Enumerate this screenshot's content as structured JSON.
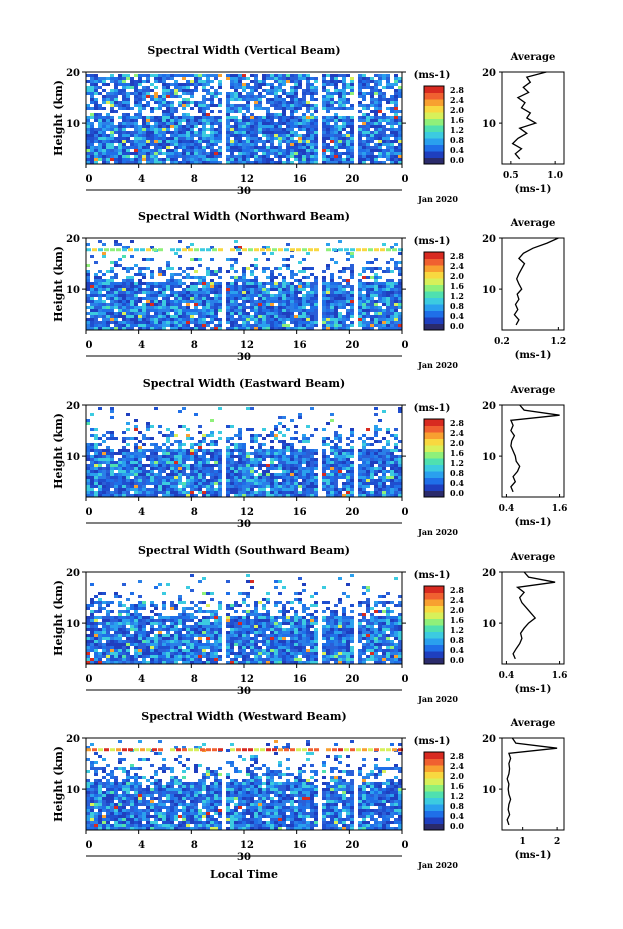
{
  "colors": {
    "colorbar": [
      "#2b2b6b",
      "#1f3fbf",
      "#1f6fe8",
      "#2aa0ee",
      "#3ccbe0",
      "#4fe0b0",
      "#8ff07a",
      "#d8f05a",
      "#f8d840",
      "#f8a030",
      "#f06030",
      "#d82a20"
    ]
  },
  "chart_data": [
    {
      "type": "heatmap",
      "title": "Spectral Width (Vertical Beam)",
      "ylabel": "Height (km)",
      "x_ticks": [
        "0",
        "4",
        "8",
        "12",
        "16",
        "20",
        "0"
      ],
      "date_label": "30",
      "month_label": "Jan 2020",
      "y_ticks": [
        "20",
        "10"
      ],
      "ylim": [
        2,
        20
      ],
      "xlim": [
        0,
        24
      ],
      "gaps_hours": [
        [
          3.4,
          3.6
        ],
        [
          5.8,
          6.0
        ],
        [
          10.2,
          10.6
        ],
        [
          17.6,
          17.8
        ],
        [
          20.2,
          20.4
        ]
      ],
      "colorbar": {
        "unit": "(ms-1)",
        "ticks": [
          "2.8",
          "2.4",
          "2.0",
          "1.6",
          "1.2",
          "0.8",
          "0.4",
          "0.0"
        ]
      },
      "average": {
        "title": "Average",
        "xlabel": "(ms-1)",
        "x_ticks": [
          "0.5",
          "1.0"
        ],
        "xlim": [
          0.4,
          1.1
        ],
        "y_ticks": [
          "20",
          "10"
        ],
        "profile": [
          [
            3,
            0.6
          ],
          [
            4,
            0.55
          ],
          [
            5,
            0.62
          ],
          [
            6,
            0.52
          ],
          [
            7,
            0.58
          ],
          [
            8,
            0.68
          ],
          [
            9,
            0.6
          ],
          [
            10,
            0.78
          ],
          [
            11,
            0.68
          ],
          [
            12,
            0.72
          ],
          [
            13,
            0.62
          ],
          [
            14,
            0.66
          ],
          [
            15,
            0.58
          ],
          [
            16,
            0.7
          ],
          [
            17,
            0.64
          ],
          [
            18,
            0.72
          ],
          [
            19,
            0.68
          ],
          [
            20,
            0.9
          ]
        ]
      }
    },
    {
      "type": "heatmap",
      "title": "Spectral Width (Northward Beam)",
      "ylabel": "Height (km)",
      "x_ticks": [
        "0",
        "4",
        "8",
        "12",
        "16",
        "20",
        "0"
      ],
      "date_label": "30",
      "month_label": "Jan 2020",
      "y_ticks": [
        "20",
        "10"
      ],
      "ylim": [
        2,
        20
      ],
      "xlim": [
        0,
        24
      ],
      "gaps_hours": [
        [
          3.4,
          3.6
        ],
        [
          5.8,
          6.0
        ],
        [
          10.2,
          10.6
        ],
        [
          17.6,
          17.8
        ],
        [
          20.2,
          20.4
        ]
      ],
      "colorbar": {
        "unit": "(ms-1)",
        "ticks": [
          "2.8",
          "2.4",
          "2.0",
          "1.6",
          "1.2",
          "0.8",
          "0.4",
          "0.0"
        ]
      },
      "average": {
        "title": "Average",
        "xlabel": "(ms-1)",
        "x_ticks": [
          "0.2",
          "1.2"
        ],
        "xlim": [
          0.2,
          1.3
        ],
        "y_ticks": [
          "20",
          "10"
        ],
        "profile": [
          [
            3,
            0.45
          ],
          [
            4,
            0.5
          ],
          [
            5,
            0.42
          ],
          [
            6,
            0.48
          ],
          [
            7,
            0.44
          ],
          [
            8,
            0.5
          ],
          [
            9,
            0.47
          ],
          [
            10,
            0.55
          ],
          [
            11,
            0.5
          ],
          [
            12,
            0.46
          ],
          [
            13,
            0.5
          ],
          [
            14,
            0.55
          ],
          [
            15,
            0.6
          ],
          [
            16,
            0.5
          ],
          [
            17,
            0.58
          ],
          [
            18,
            0.75
          ],
          [
            19,
            1.0
          ],
          [
            20,
            1.2
          ]
        ]
      }
    },
    {
      "type": "heatmap",
      "title": "Spectral Width (Eastward Beam)",
      "ylabel": "Height (km)",
      "x_ticks": [
        "0",
        "4",
        "8",
        "12",
        "16",
        "20",
        "0"
      ],
      "date_label": "30",
      "month_label": "Jan 2020",
      "y_ticks": [
        "20",
        "10"
      ],
      "ylim": [
        2,
        20
      ],
      "xlim": [
        0,
        24
      ],
      "gaps_hours": [
        [
          3.4,
          3.6
        ],
        [
          5.8,
          6.0
        ],
        [
          10.2,
          10.6
        ],
        [
          17.6,
          17.8
        ],
        [
          20.2,
          20.4
        ]
      ],
      "colorbar": {
        "unit": "(ms-1)",
        "ticks": [
          "2.8",
          "2.4",
          "2.0",
          "1.6",
          "1.2",
          "0.8",
          "0.4",
          "0.0"
        ]
      },
      "average": {
        "title": "Average",
        "xlabel": "(ms-1)",
        "x_ticks": [
          "0.4",
          "1.6"
        ],
        "xlim": [
          0.3,
          1.7
        ],
        "y_ticks": [
          "20",
          "10"
        ],
        "profile": [
          [
            3,
            0.55
          ],
          [
            4,
            0.5
          ],
          [
            5,
            0.6
          ],
          [
            6,
            0.55
          ],
          [
            7,
            0.65
          ],
          [
            8,
            0.7
          ],
          [
            9,
            0.62
          ],
          [
            10,
            0.6
          ],
          [
            11,
            0.55
          ],
          [
            12,
            0.5
          ],
          [
            13,
            0.52
          ],
          [
            14,
            0.58
          ],
          [
            15,
            0.5
          ],
          [
            16,
            0.55
          ],
          [
            17,
            0.5
          ],
          [
            18,
            1.6
          ],
          [
            19,
            0.8
          ],
          [
            20,
            0.7
          ]
        ]
      }
    },
    {
      "type": "heatmap",
      "title": "Spectral Width (Southward Beam)",
      "ylabel": "Height (km)",
      "x_ticks": [
        "0",
        "4",
        "8",
        "12",
        "16",
        "20",
        "0"
      ],
      "date_label": "30",
      "month_label": "Jan 2020",
      "y_ticks": [
        "20",
        "10"
      ],
      "ylim": [
        2,
        20
      ],
      "xlim": [
        0,
        24
      ],
      "gaps_hours": [
        [
          3.4,
          3.6
        ],
        [
          5.8,
          6.0
        ],
        [
          10.2,
          10.6
        ],
        [
          17.6,
          17.8
        ],
        [
          20.2,
          20.4
        ]
      ],
      "colorbar": {
        "unit": "(ms-1)",
        "ticks": [
          "2.8",
          "2.4",
          "2.0",
          "1.6",
          "1.2",
          "0.8",
          "0.4",
          "0.0"
        ]
      },
      "average": {
        "title": "Average",
        "xlabel": "(ms-1)",
        "x_ticks": [
          "0.4",
          "1.6"
        ],
        "xlim": [
          0.3,
          1.7
        ],
        "y_ticks": [
          "20",
          "10"
        ],
        "profile": [
          [
            3,
            0.6
          ],
          [
            4,
            0.55
          ],
          [
            5,
            0.62
          ],
          [
            6,
            0.7
          ],
          [
            7,
            0.75
          ],
          [
            8,
            0.72
          ],
          [
            9,
            0.8
          ],
          [
            10,
            0.9
          ],
          [
            11,
            1.05
          ],
          [
            12,
            0.95
          ],
          [
            13,
            0.85
          ],
          [
            14,
            0.75
          ],
          [
            15,
            0.7
          ],
          [
            16,
            0.8
          ],
          [
            17,
            0.65
          ],
          [
            18,
            1.5
          ],
          [
            19,
            0.9
          ],
          [
            20,
            0.8
          ]
        ]
      }
    },
    {
      "type": "heatmap",
      "title": "Spectral Width (Westward Beam)",
      "ylabel": "Height (km)",
      "x_ticks": [
        "0",
        "4",
        "8",
        "12",
        "16",
        "20",
        "0"
      ],
      "date_label": "30",
      "month_label": "Jan 2020",
      "y_ticks": [
        "20",
        "10"
      ],
      "ylim": [
        2,
        20
      ],
      "xlim": [
        0,
        24
      ],
      "gaps_hours": [
        [
          3.4,
          3.6
        ],
        [
          5.8,
          6.0
        ],
        [
          10.2,
          10.6
        ],
        [
          17.6,
          17.8
        ],
        [
          20.2,
          20.4
        ]
      ],
      "colorbar": {
        "unit": "(ms-1)",
        "ticks": [
          "2.8",
          "2.4",
          "2.0",
          "1.6",
          "1.2",
          "0.8",
          "0.4",
          "0.0"
        ]
      },
      "average": {
        "title": "Average",
        "xlabel": "(ms-1)",
        "x_ticks": [
          "1",
          "2"
        ],
        "xlim": [
          0.4,
          2.2
        ],
        "y_ticks": [
          "20",
          "10"
        ],
        "profile": [
          [
            3,
            0.6
          ],
          [
            4,
            0.55
          ],
          [
            5,
            0.62
          ],
          [
            6,
            0.58
          ],
          [
            7,
            0.6
          ],
          [
            8,
            0.65
          ],
          [
            9,
            0.6
          ],
          [
            10,
            0.58
          ],
          [
            11,
            0.6
          ],
          [
            12,
            0.55
          ],
          [
            13,
            0.6
          ],
          [
            14,
            0.62
          ],
          [
            15,
            0.6
          ],
          [
            16,
            0.65
          ],
          [
            17,
            0.6
          ],
          [
            18,
            2.0
          ],
          [
            19,
            0.8
          ],
          [
            20,
            0.7
          ]
        ]
      }
    }
  ],
  "footer": {
    "xlabel": "Local Time"
  }
}
